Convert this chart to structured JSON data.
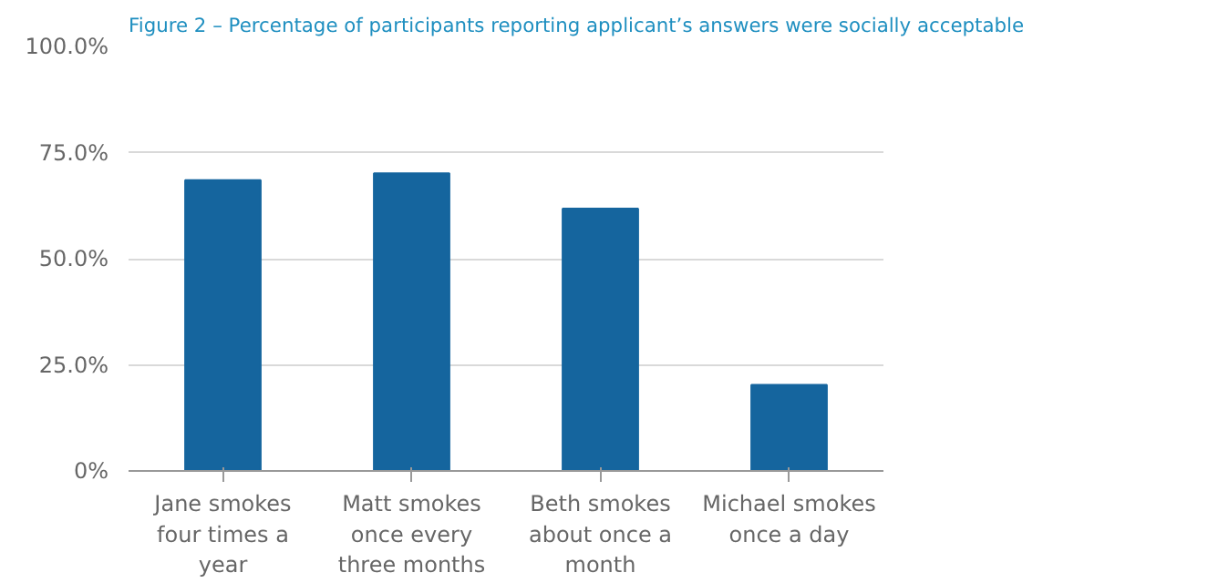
{
  "chart_data": {
    "type": "bar",
    "title": "Figure 2 – Percentage of participants reporting applicant’s answers were socially acceptable",
    "categories": [
      "Jane smokes four times a year",
      "Matt smokes once every three months",
      "Beth smokes about once a month",
      "Michael smokes once a day"
    ],
    "values": [
      68.5,
      70.1,
      61.8,
      20.3
    ],
    "color": "#15659e",
    "ylim": [
      0,
      100
    ],
    "yticks": [
      {
        "value": 0,
        "label": "0%"
      },
      {
        "value": 25,
        "label": "25.0%"
      },
      {
        "value": 50,
        "label": "50.0%"
      },
      {
        "value": 75,
        "label": "75.0%"
      },
      {
        "value": 100,
        "label": "100.0%"
      }
    ],
    "grid": "y"
  }
}
